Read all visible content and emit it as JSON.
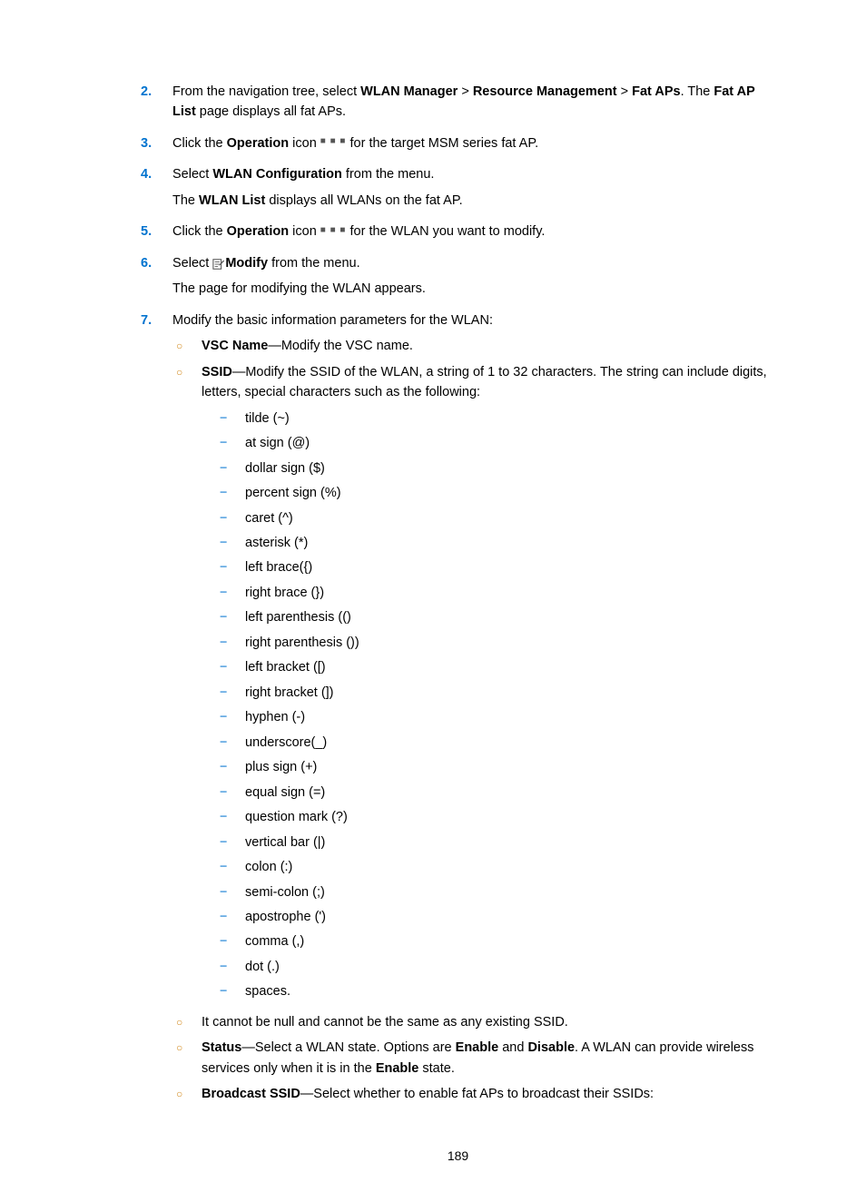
{
  "steps": {
    "s2": {
      "num": "2.",
      "pre": "From the navigation tree, select ",
      "b1": "WLAN Manager",
      "gt1": " > ",
      "b2": "Resource Management",
      "gt2": " > ",
      "b3": "Fat APs",
      "post1": ". The ",
      "b4": "Fat AP List",
      "post2": " page displays all fat APs."
    },
    "s3": {
      "num": "3.",
      "pre": "Click the ",
      "b1": "Operation",
      "mid": " icon ",
      "post": " for the target MSM series fat AP."
    },
    "s4": {
      "num": "4.",
      "pre": "Select ",
      "b1": "WLAN Configuration",
      "post": " from the menu.",
      "line2a": "The ",
      "line2b": "WLAN List",
      "line2c": " displays all WLANs on the fat AP."
    },
    "s5": {
      "num": "5.",
      "pre": "Click the ",
      "b1": "Operation",
      "mid": " icon ",
      "post": " for the WLAN you want to modify."
    },
    "s6": {
      "num": "6.",
      "pre": "Select ",
      "b1": "Modify",
      "post": " from the menu.",
      "line2": "The page for modifying the WLAN appears."
    },
    "s7": {
      "num": "7.",
      "text": "Modify the basic information parameters for the WLAN:"
    }
  },
  "bullets": {
    "vsc": {
      "b": "VSC Name",
      "t": "—Modify the VSC name."
    },
    "ssid": {
      "b": "SSID",
      "t": "—Modify the SSID of the WLAN, a string of 1 to 32 characters. The string can include digits, letters, special characters such as the following:"
    },
    "notnull": "It cannot be null and cannot be the same as any existing SSID.",
    "status": {
      "b": "Status",
      "t1": "—Select a WLAN state. Options are ",
      "b2": "Enable",
      "t2": " and ",
      "b3": "Disable",
      "t3": ". A WLAN can provide wireless services only when it is in the ",
      "b4": "Enable",
      "t4": " state."
    },
    "broadcast": {
      "b": "Broadcast SSID",
      "t": "—Select whether to enable fat APs to broadcast their SSIDs:"
    }
  },
  "chars": [
    "tilde (~)",
    "at sign (@)",
    "dollar sign ($)",
    "percent sign (%)",
    "caret (^)",
    "asterisk (*)",
    "left brace({)",
    "right brace (})",
    "left parenthesis (()",
    "right parenthesis ())",
    "left bracket ([)",
    "right bracket (])",
    "hyphen (-)",
    "underscore(_)",
    "plus sign (+)",
    "equal sign (=)",
    "question mark (?)",
    "vertical bar (|)",
    "colon (:)",
    "semi-colon (;)",
    "apostrophe (')",
    "comma (,)",
    "dot (.)",
    "spaces."
  ],
  "pageNumber": "189",
  "colors": {
    "accent_blue": "#0073cf",
    "accent_orange": "#d38b1f"
  }
}
